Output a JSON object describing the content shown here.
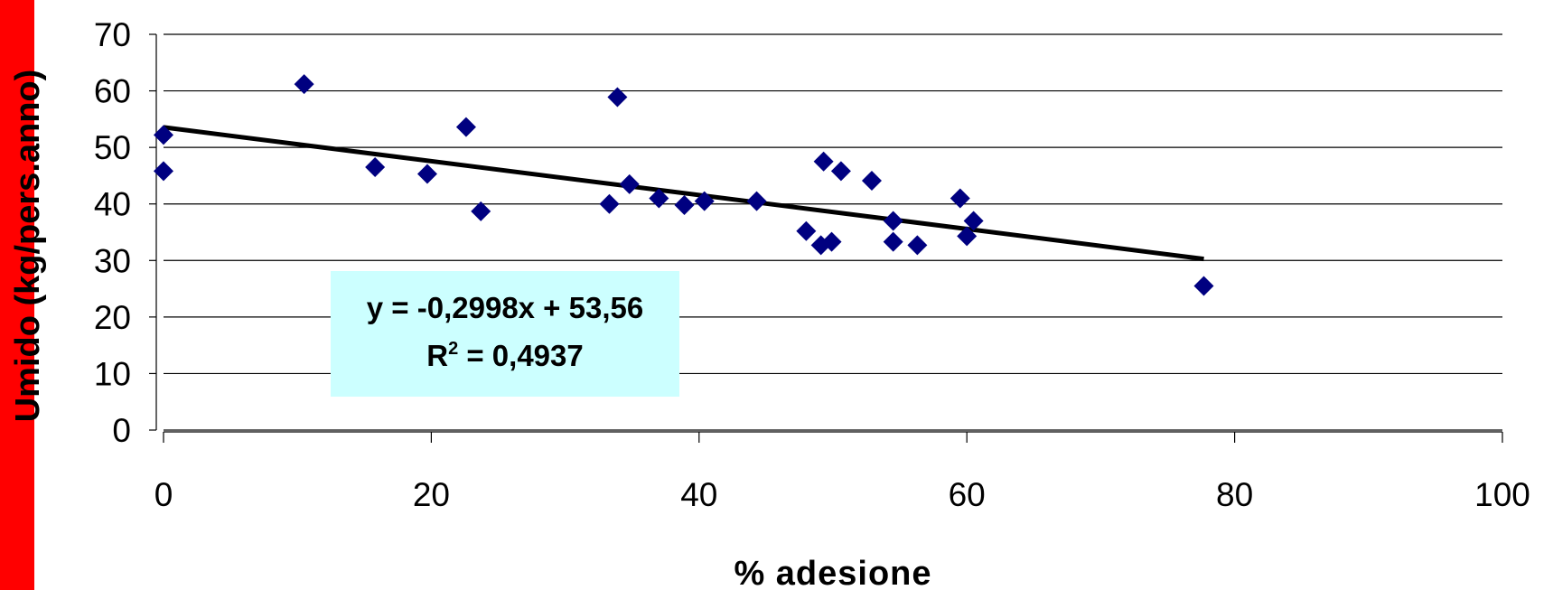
{
  "colors": {
    "side_bar": "#ff0000",
    "marker": "#000080",
    "trendline": "#000000",
    "equation_box": "#ccffff",
    "grid": "#000000"
  },
  "chart_data": {
    "type": "scatter",
    "xlabel": "% adesione",
    "ylabel": "Umido (kg/pers.anno)",
    "xlim": [
      0,
      100
    ],
    "ylim": [
      0,
      70
    ],
    "x_ticks": [
      "0",
      "20",
      "40",
      "60",
      "80",
      "100"
    ],
    "y_ticks": [
      "0",
      "10",
      "20",
      "30",
      "40",
      "50",
      "60",
      "70"
    ],
    "grid": "horizontal",
    "marker": "diamond",
    "points": [
      {
        "x": 0.0,
        "y": 52.2
      },
      {
        "x": 0.0,
        "y": 45.8
      },
      {
        "x": 10.5,
        "y": 61.2
      },
      {
        "x": 15.8,
        "y": 46.5
      },
      {
        "x": 19.7,
        "y": 45.3
      },
      {
        "x": 22.6,
        "y": 53.6
      },
      {
        "x": 23.7,
        "y": 38.7
      },
      {
        "x": 33.3,
        "y": 40.0
      },
      {
        "x": 33.9,
        "y": 58.9
      },
      {
        "x": 34.8,
        "y": 43.5
      },
      {
        "x": 37.0,
        "y": 41.0
      },
      {
        "x": 38.9,
        "y": 39.8
      },
      {
        "x": 40.4,
        "y": 40.5
      },
      {
        "x": 44.3,
        "y": 40.5
      },
      {
        "x": 48.0,
        "y": 35.2
      },
      {
        "x": 49.1,
        "y": 32.7
      },
      {
        "x": 49.3,
        "y": 47.5
      },
      {
        "x": 49.9,
        "y": 33.3
      },
      {
        "x": 50.6,
        "y": 45.8
      },
      {
        "x": 52.9,
        "y": 44.1
      },
      {
        "x": 54.5,
        "y": 37.0
      },
      {
        "x": 54.5,
        "y": 33.3
      },
      {
        "x": 56.3,
        "y": 32.7
      },
      {
        "x": 59.5,
        "y": 41.0
      },
      {
        "x": 60.0,
        "y": 34.3
      },
      {
        "x": 60.5,
        "y": 37.0
      },
      {
        "x": 77.7,
        "y": 25.5
      }
    ],
    "trendline": {
      "slope": -0.2998,
      "intercept": 53.56,
      "x_range": [
        0,
        77.7
      ],
      "equation": "y = -0,2998x + 53,56",
      "r2_prefix": "R",
      "r2_sup": "2",
      "r2_value": " = 0,4937"
    }
  }
}
